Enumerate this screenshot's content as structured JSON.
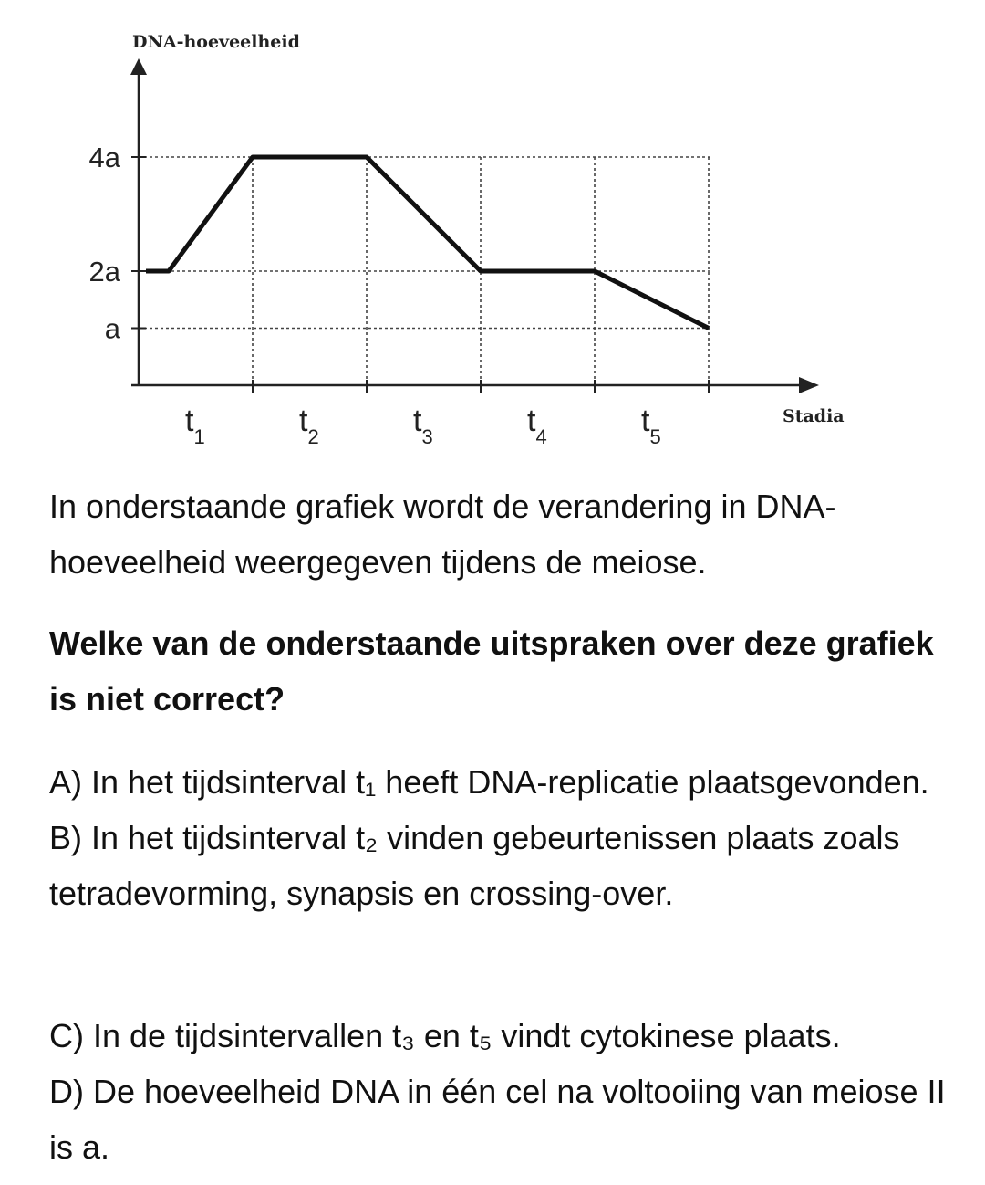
{
  "chart_data": {
    "type": "line",
    "ylabel": "DNA-hoeveelheid",
    "xlabel": "Stadia",
    "y_ticks": [
      {
        "label": "4a",
        "value": 4
      },
      {
        "label": "2a",
        "value": 2
      },
      {
        "label": "a",
        "value": 1
      }
    ],
    "intervals": [
      {
        "main": "t",
        "sub": "1"
      },
      {
        "main": "t",
        "sub": "2"
      },
      {
        "main": "t",
        "sub": "3"
      },
      {
        "main": "t",
        "sub": "4"
      },
      {
        "main": "t",
        "sub": "5"
      }
    ],
    "series": [
      {
        "x": [
          0,
          0.3,
          1,
          2,
          3,
          4,
          5
        ],
        "y": [
          2,
          2,
          4,
          4,
          2,
          2,
          1
        ]
      }
    ],
    "boundaries": [
      1,
      2,
      3,
      4,
      5
    ],
    "ylim": [
      0,
      5
    ],
    "xlim": [
      0,
      6
    ]
  },
  "text": {
    "intro": "In onderstaande grafiek wordt de verandering in DNA-hoeveelheid weergegeven tijdens de meiose.",
    "question": "Welke van de onderstaande uitspraken over deze grafiek is niet correct?",
    "option_a": "A) In het tijdsinterval t₁ heeft DNA-replicatie plaatsgevonden.",
    "option_b": "B) In het tijdsinterval t₂ vinden gebeurtenissen plaats zoals tetradevorming, synapsis en crossing-over.",
    "option_c": "C) In de tijdsintervallen t₃ en t₅ vindt cytokinese plaats.",
    "option_d": "D) De hoeveelheid DNA in één cel na voltooiing van meiose II is a."
  }
}
